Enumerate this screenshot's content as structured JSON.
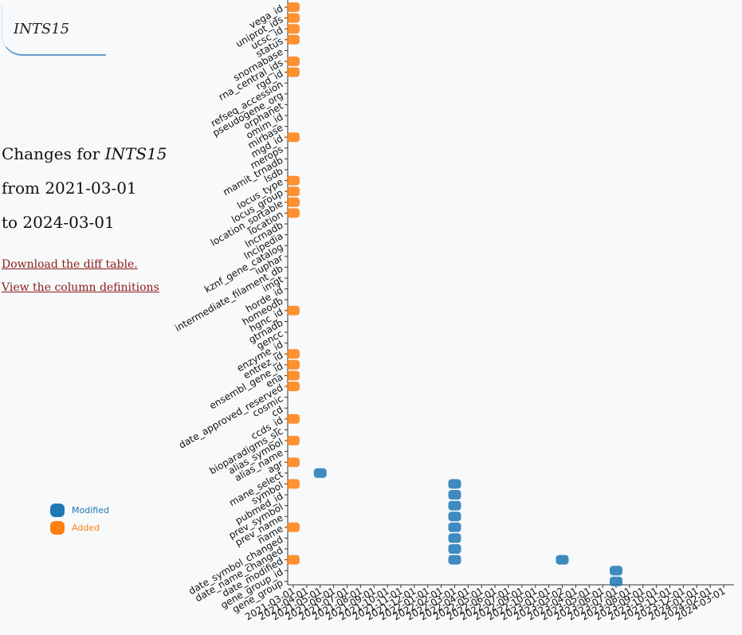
{
  "header": {
    "gene": "INTS15"
  },
  "summary": {
    "changes_for": "Changes for",
    "gene": "INTS15",
    "from_line": "from 2021-03-01",
    "to_line": "to 2024-03-01"
  },
  "links": {
    "download": "Download the diff table.",
    "definitions": "View the column definitions"
  },
  "colors": {
    "modified": "#1f77b4",
    "added": "#ff7f0e"
  },
  "chart_data": {
    "type": "scatter",
    "legend": [
      {
        "name": "Modified",
        "color": "#1f77b4"
      },
      {
        "name": "Added",
        "color": "#ff7f0e"
      }
    ],
    "legend_placement": "left",
    "categories": [
      "vega_id",
      "uniprot_ids",
      "ucsc_id",
      "status",
      "snornabase",
      "rna_central_ids",
      "rgd_id",
      "refseq_accession",
      "pseudogene_org",
      "orphanet",
      "omim_id",
      "mirbase",
      "mgd_id",
      "merops",
      "mamit_trnadb",
      "lsdb",
      "locus_type",
      "locus_group",
      "location_sortable",
      "location",
      "lncrnadb",
      "lncipedia",
      "kznf_gene_catalog",
      "iuphar",
      "intermediate_filament_db",
      "imgt",
      "horde_id",
      "homeodb",
      "hgnc_id",
      "gtrnadb",
      "gencc",
      "enzyme_id",
      "entrez_id",
      "ensembl_gene_id",
      "ena",
      "date_approved_reserved",
      "cosmic",
      "cd",
      "ccds_id",
      "bioparadigms_slc",
      "alias_symbol",
      "alias_name",
      "agr",
      "mane_select",
      "symbol",
      "pubmed_id",
      "prev_symbol",
      "prev_name",
      "name",
      "date_symbol_changed",
      "date_name_changed",
      "date_modified",
      "gene_group_id",
      "gene_group"
    ],
    "x_ticks": [
      "2021-03-01",
      "2021-04-01",
      "2021-05-01",
      "2021-06-01",
      "2021-07-01",
      "2021-08-01",
      "2021-09-01",
      "2021-10-01",
      "2021-11-01",
      "2021-12-01",
      "2022-01-01",
      "2022-02-01",
      "2022-03-01",
      "2022-04-01",
      "2022-05-01",
      "2022-06-01",
      "2022-07-01",
      "2022-09-01",
      "2022-10-01",
      "2023-01-01",
      "2023-03-02",
      "2023-04-01",
      "2023-05-01",
      "2023-06-01",
      "2023-07-01",
      "2023-08-01",
      "2023-09-01",
      "2023-10-01",
      "2023-11-01",
      "2023-12-01",
      "2024-01-01",
      "2024-02-01",
      "2024-03-01"
    ],
    "points": [
      {
        "x": "2021-03-01",
        "y": "vega_id",
        "status": "Added"
      },
      {
        "x": "2021-03-01",
        "y": "uniprot_ids",
        "status": "Added"
      },
      {
        "x": "2021-03-01",
        "y": "ucsc_id",
        "status": "Added"
      },
      {
        "x": "2021-03-01",
        "y": "status",
        "status": "Added"
      },
      {
        "x": "2021-03-01",
        "y": "rna_central_ids",
        "status": "Added"
      },
      {
        "x": "2021-03-01",
        "y": "rgd_id",
        "status": "Added"
      },
      {
        "x": "2021-03-01",
        "y": "mgd_id",
        "status": "Added"
      },
      {
        "x": "2021-03-01",
        "y": "locus_type",
        "status": "Added"
      },
      {
        "x": "2021-03-01",
        "y": "locus_group",
        "status": "Added"
      },
      {
        "x": "2021-03-01",
        "y": "location_sortable",
        "status": "Added"
      },
      {
        "x": "2021-03-01",
        "y": "location",
        "status": "Added"
      },
      {
        "x": "2021-03-01",
        "y": "hgnc_id",
        "status": "Added"
      },
      {
        "x": "2021-03-01",
        "y": "entrez_id",
        "status": "Added"
      },
      {
        "x": "2021-03-01",
        "y": "ensembl_gene_id",
        "status": "Added"
      },
      {
        "x": "2021-03-01",
        "y": "ena",
        "status": "Added"
      },
      {
        "x": "2021-03-01",
        "y": "date_approved_reserved",
        "status": "Added"
      },
      {
        "x": "2021-03-01",
        "y": "ccds_id",
        "status": "Added"
      },
      {
        "x": "2021-03-01",
        "y": "alias_symbol",
        "status": "Added"
      },
      {
        "x": "2021-03-01",
        "y": "agr",
        "status": "Added"
      },
      {
        "x": "2021-03-01",
        "y": "symbol",
        "status": "Added"
      },
      {
        "x": "2021-03-01",
        "y": "name",
        "status": "Added"
      },
      {
        "x": "2021-03-01",
        "y": "date_modified",
        "status": "Added"
      },
      {
        "x": "2021-05-01",
        "y": "mane_select",
        "status": "Modified"
      },
      {
        "x": "2022-03-01",
        "y": "symbol",
        "status": "Modified"
      },
      {
        "x": "2022-03-01",
        "y": "pubmed_id",
        "status": "Modified"
      },
      {
        "x": "2022-03-01",
        "y": "prev_symbol",
        "status": "Modified"
      },
      {
        "x": "2022-03-01",
        "y": "prev_name",
        "status": "Modified"
      },
      {
        "x": "2022-03-01",
        "y": "name",
        "status": "Modified"
      },
      {
        "x": "2022-03-01",
        "y": "date_symbol_changed",
        "status": "Modified"
      },
      {
        "x": "2022-03-01",
        "y": "date_name_changed",
        "status": "Modified"
      },
      {
        "x": "2022-03-01",
        "y": "date_modified",
        "status": "Modified"
      },
      {
        "x": "2023-03-02",
        "y": "date_modified",
        "status": "Modified"
      },
      {
        "x": "2023-07-01",
        "y": "gene_group_id",
        "status": "Modified"
      },
      {
        "x": "2023-07-01",
        "y": "gene_group",
        "status": "Modified"
      }
    ]
  }
}
